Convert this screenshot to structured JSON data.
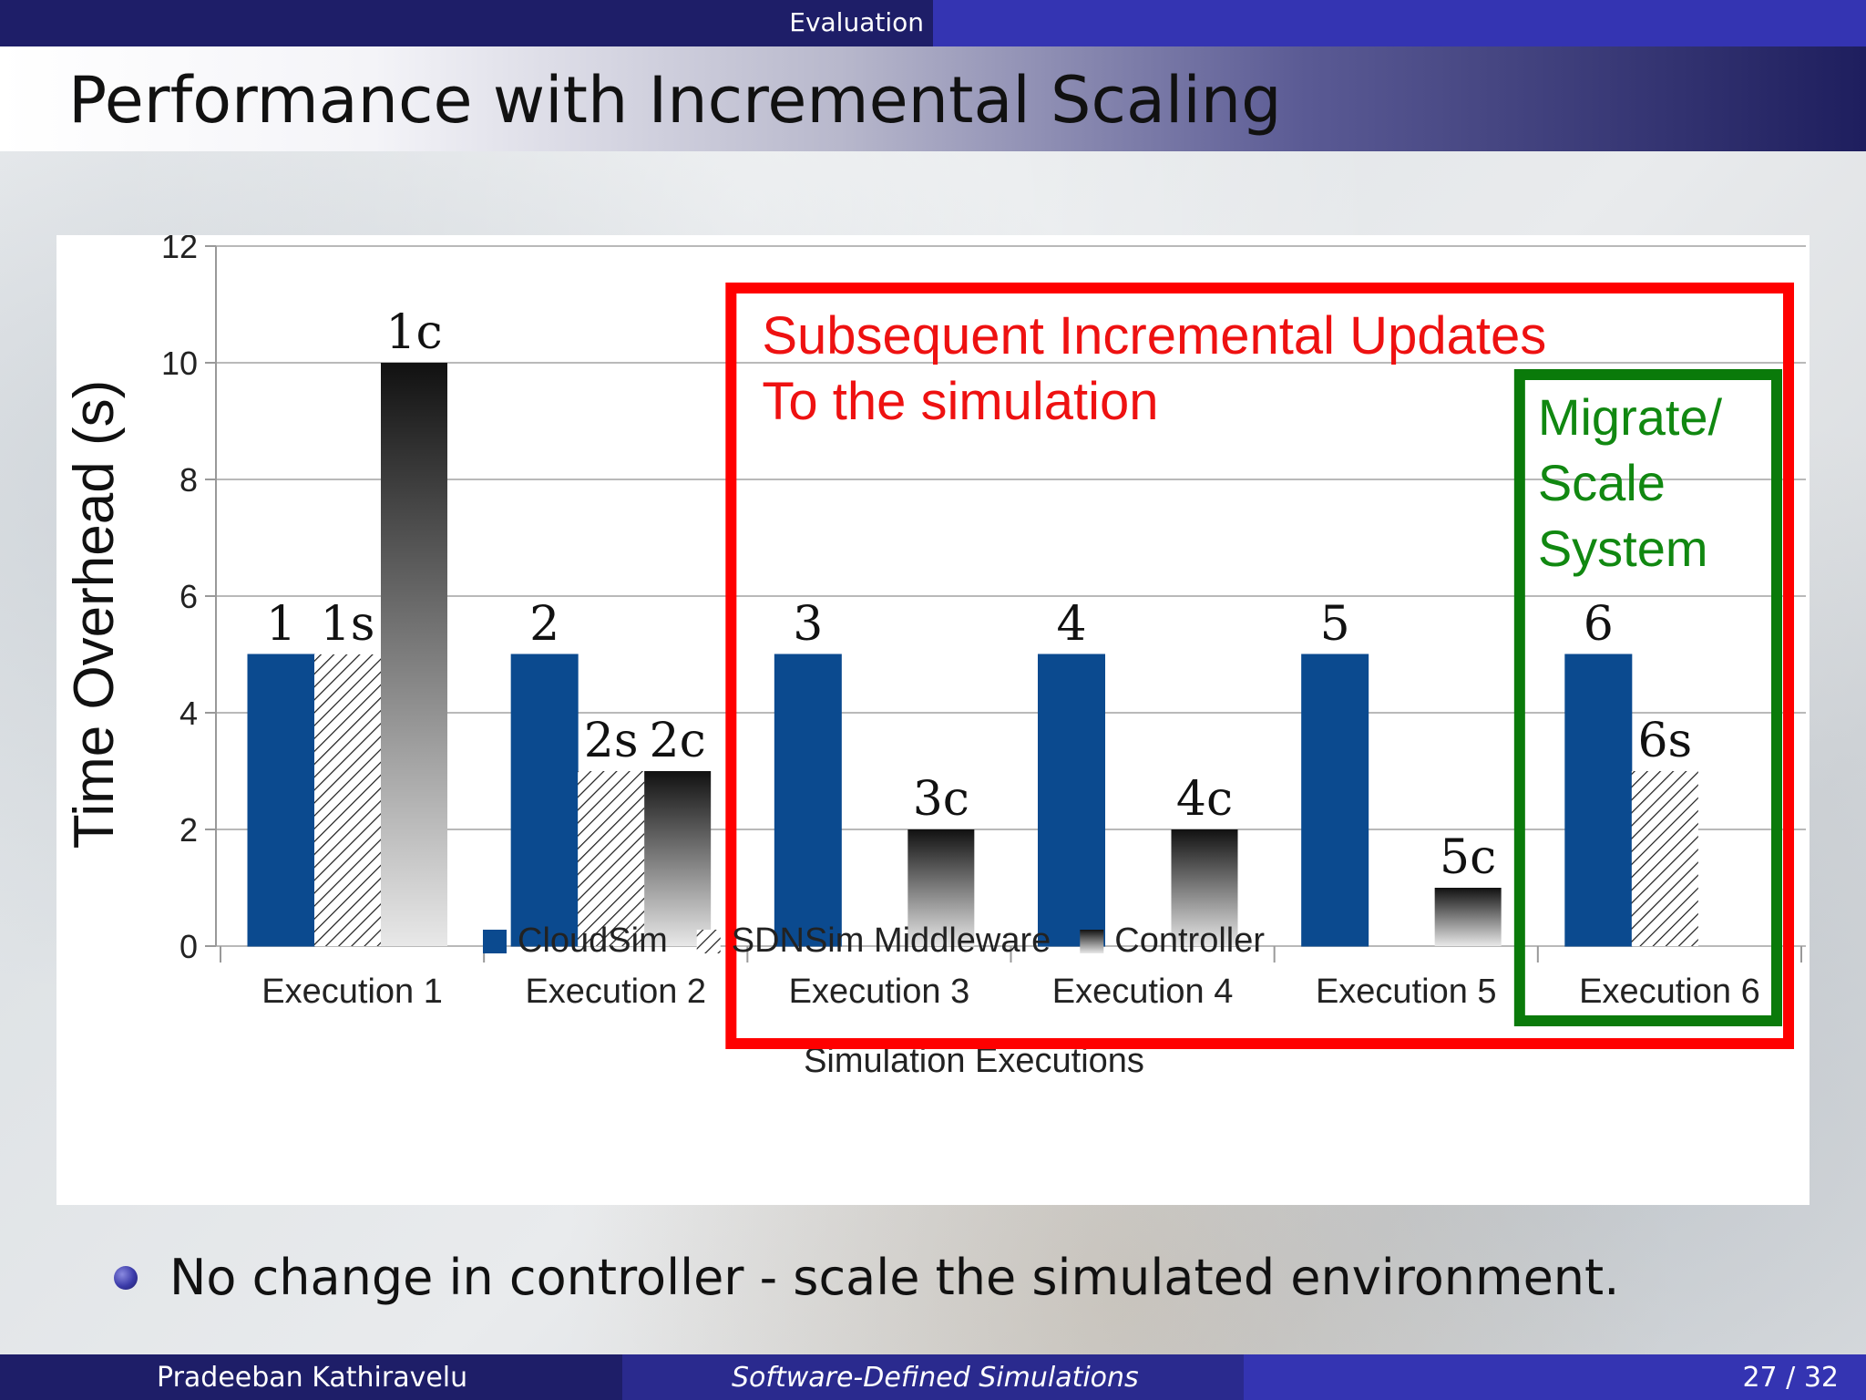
{
  "header": {
    "section": "Evaluation",
    "title": "Performance with Incremental Scaling"
  },
  "chart_data": {
    "type": "bar",
    "xlabel": "Simulation Executions",
    "ylabel": "Time Overhead (s)",
    "ylim": [
      0,
      12
    ],
    "yticks": [
      "0",
      "2",
      "4",
      "6",
      "8",
      "10",
      "12"
    ],
    "grid": true,
    "legend_position": "bottom",
    "categories": [
      "Execution 1",
      "Execution 2",
      "Execution 3",
      "Execution 4",
      "Execution 5",
      "Execution 6"
    ],
    "series": [
      {
        "name": "CloudSim",
        "color": "#0b4a8f",
        "pattern": "solid",
        "values": [
          5,
          5,
          5,
          5,
          5,
          5
        ],
        "labels": [
          "1",
          "2",
          "3",
          "4",
          "5",
          "6"
        ]
      },
      {
        "name": "SDNSim Middleware",
        "color": "#222222",
        "pattern": "hatch",
        "values": [
          5,
          3,
          null,
          null,
          null,
          3
        ],
        "labels": [
          "1s",
          "2s",
          "",
          "",
          "",
          "6s"
        ]
      },
      {
        "name": "Controller",
        "color": "#222222",
        "pattern": "gradient",
        "values": [
          10,
          3,
          2,
          2,
          1,
          null
        ],
        "labels": [
          "1c",
          "2c",
          "3c",
          "4c",
          "5c",
          ""
        ]
      }
    ],
    "annotations": [
      {
        "text_lines": [
          "Subsequent Incremental Updates",
          "To the simulation"
        ],
        "color": "#ee1111",
        "box_color": "#ff0000",
        "spans": [
          "Execution 3",
          "Execution 6"
        ]
      },
      {
        "text_lines": [
          "Migrate/",
          "Scale",
          "System"
        ],
        "color": "#118811",
        "box_color": "#0a7a0a",
        "spans": [
          "Execution 6",
          "Execution 6"
        ]
      }
    ]
  },
  "bullets": [
    "No change in controller - scale the simulated environment."
  ],
  "footer": {
    "author": "Pradeeban Kathiravelu",
    "talk_title": "Software-Defined Simulations",
    "page": "27 / 32"
  }
}
